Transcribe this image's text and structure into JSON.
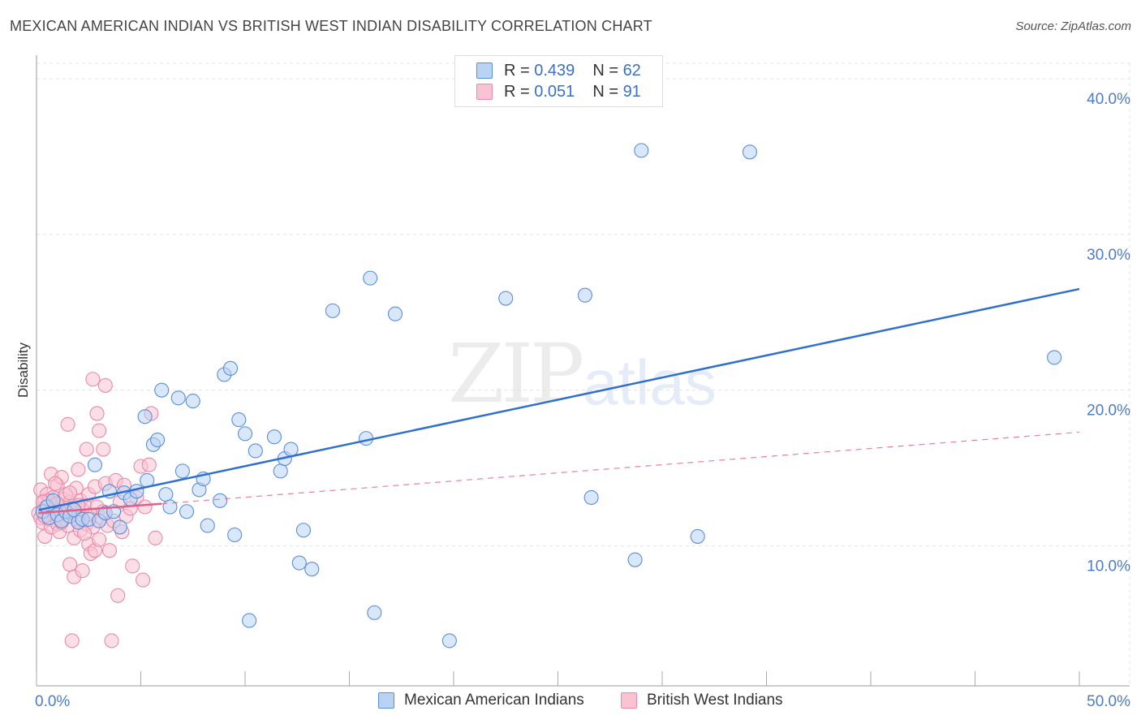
{
  "title": "MEXICAN AMERICAN INDIAN VS BRITISH WEST INDIAN DISABILITY CORRELATION CHART",
  "source": "Source: ZipAtlas.com",
  "watermark": {
    "zip": "ZIP",
    "atlas": "atlas"
  },
  "legend": {
    "rows": [
      {
        "r_label": "R = ",
        "r_value": "0.439",
        "n_label": "N = ",
        "n_value": "62"
      },
      {
        "r_label": "R = ",
        "r_value": "0.051",
        "n_label": "N = ",
        "n_value": "91"
      }
    ]
  },
  "bottom_legend": [
    "Mexican American Indians",
    "British West Indians"
  ],
  "colors": {
    "blue_fill": "#b8d3f4",
    "blue_stroke": "#5a8ed8",
    "blue_line": "#2f6fcd",
    "pink_fill": "#f9c3d3",
    "pink_stroke": "#e98aa8",
    "pink_line": "#e0608a",
    "grid": "#e3e3e3",
    "tick_label": "#4a7cc9"
  },
  "chart_data": {
    "type": "scatter",
    "title": "MEXICAN AMERICAN INDIAN VS BRITISH WEST INDIAN DISABILITY CORRELATION CHART",
    "xlabel": "",
    "ylabel": "Disability",
    "xlim": [
      0,
      50
    ],
    "ylim": [
      1,
      41
    ],
    "x_tick_labels": [
      "0.0%",
      "50.0%"
    ],
    "y_ticks": [
      10,
      20,
      30,
      40
    ],
    "y_tick_labels": [
      "10.0%",
      "20.0%",
      "30.0%",
      "40.0%"
    ],
    "grid": true,
    "series": [
      {
        "name": "Mexican American Indians",
        "R": 0.439,
        "N": 62,
        "trend": {
          "x": [
            0.1,
            50
          ],
          "y": [
            12.3,
            26.5
          ]
        },
        "points": [
          [
            0.3,
            12.2
          ],
          [
            0.5,
            12.5
          ],
          [
            0.6,
            11.8
          ],
          [
            0.8,
            12.9
          ],
          [
            1.0,
            12.0
          ],
          [
            1.2,
            11.6
          ],
          [
            1.4,
            12.2
          ],
          [
            1.6,
            11.9
          ],
          [
            1.8,
            12.3
          ],
          [
            2.0,
            11.5
          ],
          [
            2.2,
            11.7
          ],
          [
            2.5,
            11.7
          ],
          [
            2.8,
            15.2
          ],
          [
            3.0,
            11.6
          ],
          [
            3.3,
            12.1
          ],
          [
            3.5,
            13.5
          ],
          [
            3.7,
            12.2
          ],
          [
            4.0,
            11.2
          ],
          [
            4.2,
            13.4
          ],
          [
            4.5,
            13.0
          ],
          [
            4.8,
            13.5
          ],
          [
            5.2,
            18.3
          ],
          [
            5.3,
            14.2
          ],
          [
            5.6,
            16.5
          ],
          [
            5.8,
            16.8
          ],
          [
            6.0,
            20.0
          ],
          [
            6.2,
            13.3
          ],
          [
            6.4,
            12.5
          ],
          [
            6.8,
            19.5
          ],
          [
            7.0,
            14.8
          ],
          [
            7.2,
            12.2
          ],
          [
            7.5,
            19.3
          ],
          [
            7.8,
            13.6
          ],
          [
            8.0,
            14.3
          ],
          [
            8.2,
            11.3
          ],
          [
            8.8,
            12.9
          ],
          [
            9.0,
            21.0
          ],
          [
            9.3,
            21.4
          ],
          [
            9.5,
            10.7
          ],
          [
            9.7,
            18.1
          ],
          [
            10.0,
            17.2
          ],
          [
            10.2,
            5.2
          ],
          [
            10.5,
            16.1
          ],
          [
            11.4,
            17.0
          ],
          [
            11.7,
            14.8
          ],
          [
            11.9,
            15.6
          ],
          [
            12.2,
            16.2
          ],
          [
            12.6,
            8.9
          ],
          [
            12.8,
            11.0
          ],
          [
            13.2,
            8.5
          ],
          [
            14.2,
            25.1
          ],
          [
            15.8,
            16.9
          ],
          [
            16.0,
            27.2
          ],
          [
            16.2,
            5.7
          ],
          [
            17.2,
            24.9
          ],
          [
            19.8,
            3.9
          ],
          [
            22.5,
            25.9
          ],
          [
            26.3,
            26.1
          ],
          [
            26.6,
            13.1
          ],
          [
            28.7,
            9.1
          ],
          [
            29.0,
            35.4
          ],
          [
            31.7,
            10.6
          ],
          [
            34.2,
            35.3
          ],
          [
            48.8,
            22.1
          ]
        ]
      },
      {
        "name": "British West Indians",
        "R": 0.051,
        "N": 91,
        "trend": {
          "x": [
            0.1,
            6.0
          ],
          "y": [
            12.1,
            12.7
          ]
        },
        "trend_extended": {
          "x": [
            6.0,
            50
          ],
          "y": [
            12.7,
            17.3
          ]
        },
        "points": [
          [
            0.1,
            12.1
          ],
          [
            0.2,
            11.8
          ],
          [
            0.2,
            13.6
          ],
          [
            0.3,
            12.4
          ],
          [
            0.3,
            11.5
          ],
          [
            0.4,
            12.9
          ],
          [
            0.4,
            10.6
          ],
          [
            0.5,
            12.0
          ],
          [
            0.5,
            13.3
          ],
          [
            0.6,
            11.7
          ],
          [
            0.6,
            12.6
          ],
          [
            0.7,
            14.6
          ],
          [
            0.7,
            11.2
          ],
          [
            0.8,
            12.3
          ],
          [
            0.8,
            13.1
          ],
          [
            0.9,
            11.9
          ],
          [
            0.9,
            12.7
          ],
          [
            1.0,
            13.9
          ],
          [
            1.0,
            11.4
          ],
          [
            1.1,
            12.2
          ],
          [
            1.1,
            10.9
          ],
          [
            1.2,
            14.4
          ],
          [
            1.2,
            12.5
          ],
          [
            1.3,
            11.8
          ],
          [
            1.3,
            13.0
          ],
          [
            1.4,
            12.1
          ],
          [
            1.5,
            17.8
          ],
          [
            1.5,
            11.3
          ],
          [
            1.6,
            12.8
          ],
          [
            1.6,
            8.8
          ],
          [
            1.7,
            3.9
          ],
          [
            1.7,
            12.4
          ],
          [
            1.8,
            10.5
          ],
          [
            1.8,
            8.0
          ],
          [
            1.9,
            13.7
          ],
          [
            1.9,
            12.0
          ],
          [
            2.0,
            11.6
          ],
          [
            2.0,
            14.9
          ],
          [
            2.1,
            12.9
          ],
          [
            2.1,
            11.0
          ],
          [
            2.2,
            8.4
          ],
          [
            2.2,
            12.3
          ],
          [
            2.3,
            12.6
          ],
          [
            2.4,
            11.4
          ],
          [
            2.4,
            16.2
          ],
          [
            2.5,
            13.3
          ],
          [
            2.5,
            10.1
          ],
          [
            2.6,
            9.5
          ],
          [
            2.6,
            12.0
          ],
          [
            2.7,
            20.7
          ],
          [
            2.7,
            11.2
          ],
          [
            2.8,
            13.8
          ],
          [
            2.8,
            9.7
          ],
          [
            2.9,
            18.5
          ],
          [
            2.9,
            12.5
          ],
          [
            3.0,
            17.4
          ],
          [
            3.0,
            10.4
          ],
          [
            3.1,
            11.8
          ],
          [
            3.2,
            16.2
          ],
          [
            3.2,
            12.2
          ],
          [
            3.3,
            14.0
          ],
          [
            3.3,
            20.3
          ],
          [
            3.4,
            11.3
          ],
          [
            3.5,
            9.7
          ],
          [
            3.6,
            3.9
          ],
          [
            3.7,
            11.6
          ],
          [
            3.8,
            14.2
          ],
          [
            3.9,
            6.8
          ],
          [
            4.0,
            12.8
          ],
          [
            4.1,
            10.9
          ],
          [
            4.2,
            13.9
          ],
          [
            4.3,
            11.9
          ],
          [
            4.5,
            12.4
          ],
          [
            4.6,
            8.7
          ],
          [
            4.8,
            13.1
          ],
          [
            5.0,
            15.1
          ],
          [
            5.1,
            7.8
          ],
          [
            5.2,
            12.5
          ],
          [
            5.4,
            15.2
          ],
          [
            5.5,
            18.5
          ],
          [
            5.7,
            10.5
          ],
          [
            0.6,
            12.9
          ],
          [
            0.9,
            14.0
          ],
          [
            1.4,
            13.3
          ],
          [
            0.4,
            11.9
          ],
          [
            1.0,
            12.7
          ],
          [
            1.6,
            13.4
          ],
          [
            2.3,
            10.8
          ],
          [
            1.2,
            11.5
          ],
          [
            2.0,
            12.6
          ],
          [
            0.3,
            12.8
          ]
        ]
      }
    ]
  }
}
